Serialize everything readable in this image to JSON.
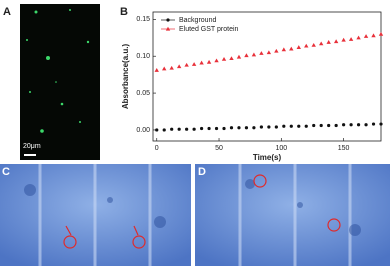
{
  "panels": {
    "a": "A",
    "b": "B",
    "c": "C",
    "d": "D"
  },
  "scale_bar": "20μm",
  "chart_data": {
    "type": "scatter",
    "xlabel": "Time(s)",
    "ylabel": "Absorbance(a.u.)",
    "x": [
      0,
      6,
      12,
      18,
      24,
      30,
      36,
      42,
      48,
      54,
      60,
      66,
      72,
      78,
      84,
      90,
      96,
      102,
      108,
      114,
      120,
      126,
      132,
      138,
      144,
      150,
      156,
      162,
      168,
      174,
      180
    ],
    "series": [
      {
        "name": "Background",
        "color": "#111111",
        "marker": "circle",
        "values": [
          0,
          0.0,
          0.001,
          0.001,
          0.001,
          0.001,
          0.002,
          0.002,
          0.002,
          0.002,
          0.003,
          0.003,
          0.003,
          0.003,
          0.004,
          0.004,
          0.004,
          0.005,
          0.005,
          0.005,
          0.005,
          0.006,
          0.006,
          0.006,
          0.006,
          0.007,
          0.007,
          0.007,
          0.007,
          0.008,
          0.008
        ]
      },
      {
        "name": "Eluted GST protein",
        "color": "#e8303a",
        "marker": "triangle",
        "values": [
          0.081,
          0.083,
          0.084,
          0.086,
          0.088,
          0.089,
          0.091,
          0.092,
          0.094,
          0.096,
          0.097,
          0.099,
          0.101,
          0.102,
          0.104,
          0.105,
          0.107,
          0.109,
          0.11,
          0.112,
          0.114,
          0.115,
          0.117,
          0.119,
          0.12,
          0.122,
          0.123,
          0.125,
          0.127,
          0.128,
          0.13
        ]
      }
    ],
    "xlim": [
      -3,
      180
    ],
    "xticks": [
      0,
      50,
      100,
      150
    ],
    "ylim": [
      -0.015,
      0.16
    ],
    "yticks": [
      {
        "value": 0,
        "label": "0.00"
      },
      {
        "value": 0.05,
        "label": "0.05"
      },
      {
        "value": 0.1,
        "label": "0.10"
      },
      {
        "value": 0.15,
        "label": "0.15"
      }
    ],
    "legend": "upper-left"
  }
}
